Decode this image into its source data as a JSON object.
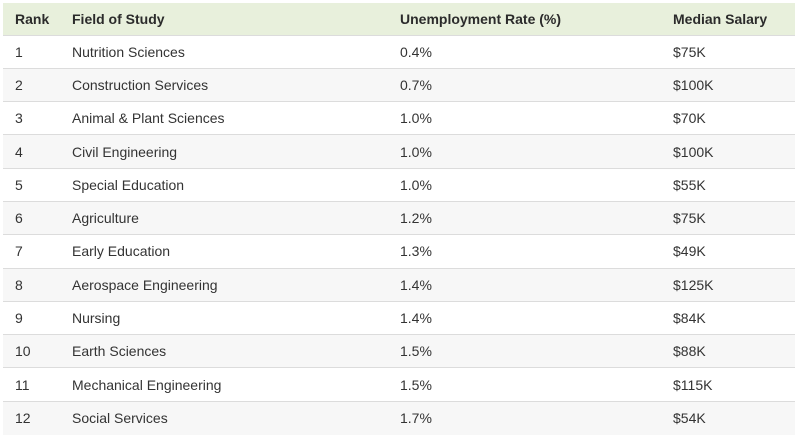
{
  "table": {
    "headers": {
      "rank": "Rank",
      "field": "Field of Study",
      "rate": "Unemployment Rate (%)",
      "salary": "Median Salary"
    },
    "rows": [
      {
        "rank": "1",
        "field": "Nutrition Sciences",
        "rate": "0.4%",
        "salary": "$75K"
      },
      {
        "rank": "2",
        "field": "Construction Services",
        "rate": "0.7%",
        "salary": "$100K"
      },
      {
        "rank": "3",
        "field": "Animal & Plant Sciences",
        "rate": "1.0%",
        "salary": "$70K"
      },
      {
        "rank": "4",
        "field": "Civil Engineering",
        "rate": "1.0%",
        "salary": "$100K"
      },
      {
        "rank": "5",
        "field": "Special Education",
        "rate": "1.0%",
        "salary": "$55K"
      },
      {
        "rank": "6",
        "field": "Agriculture",
        "rate": "1.2%",
        "salary": "$75K"
      },
      {
        "rank": "7",
        "field": "Early Education",
        "rate": "1.3%",
        "salary": "$49K"
      },
      {
        "rank": "8",
        "field": "Aerospace Engineering",
        "rate": "1.4%",
        "salary": "$125K"
      },
      {
        "rank": "9",
        "field": "Nursing",
        "rate": "1.4%",
        "salary": "$84K"
      },
      {
        "rank": "10",
        "field": "Earth Sciences",
        "rate": "1.5%",
        "salary": "$88K"
      },
      {
        "rank": "11",
        "field": "Mechanical Engineering",
        "rate": "1.5%",
        "salary": "$115K"
      },
      {
        "rank": "12",
        "field": "Social Services",
        "rate": "1.7%",
        "salary": "$54K"
      }
    ]
  },
  "colors": {
    "header_bg": "#e8f0dc",
    "row_alt_bg": "#f7f7f7",
    "divider": "#dcdcdc"
  }
}
